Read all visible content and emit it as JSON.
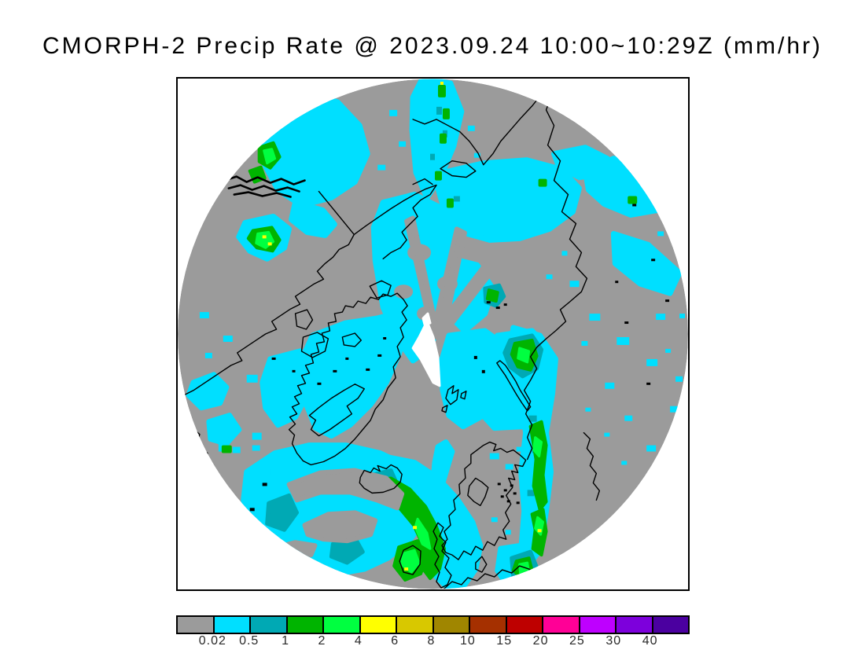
{
  "title": "CMORPH-2 Precip Rate @ 2023.09.24 10:00~10:29Z (mm/hr)",
  "map": {
    "background_color": "#9B9B9B",
    "missing_data_color": "#FFFFFF",
    "coastline_color": "#000000",
    "frame_color": "#000000"
  },
  "palette": {
    "gray": "#9B9B9B",
    "cyan": "#00DFFF",
    "teal": "#00A9B4",
    "green": "#00B400",
    "bright_green": "#00FF40",
    "yellow": "#FFFF00",
    "gold": "#D8C800",
    "olive": "#A08600",
    "brick": "#A53000",
    "red": "#BE0000",
    "pink": "#FF0096",
    "magenta": "#BE00FF",
    "violet": "#7D00DC",
    "indigo": "#4B00A0"
  },
  "colorbar": {
    "segment_colors": [
      "gray",
      "cyan",
      "teal",
      "green",
      "bright_green",
      "yellow",
      "gold",
      "olive",
      "brick",
      "red",
      "pink",
      "magenta",
      "violet",
      "indigo"
    ],
    "boundary_labels": [
      "0.02",
      "0.5",
      "1",
      "2",
      "4",
      "6",
      "8",
      "10",
      "15",
      "20",
      "25",
      "30",
      "40"
    ]
  }
}
